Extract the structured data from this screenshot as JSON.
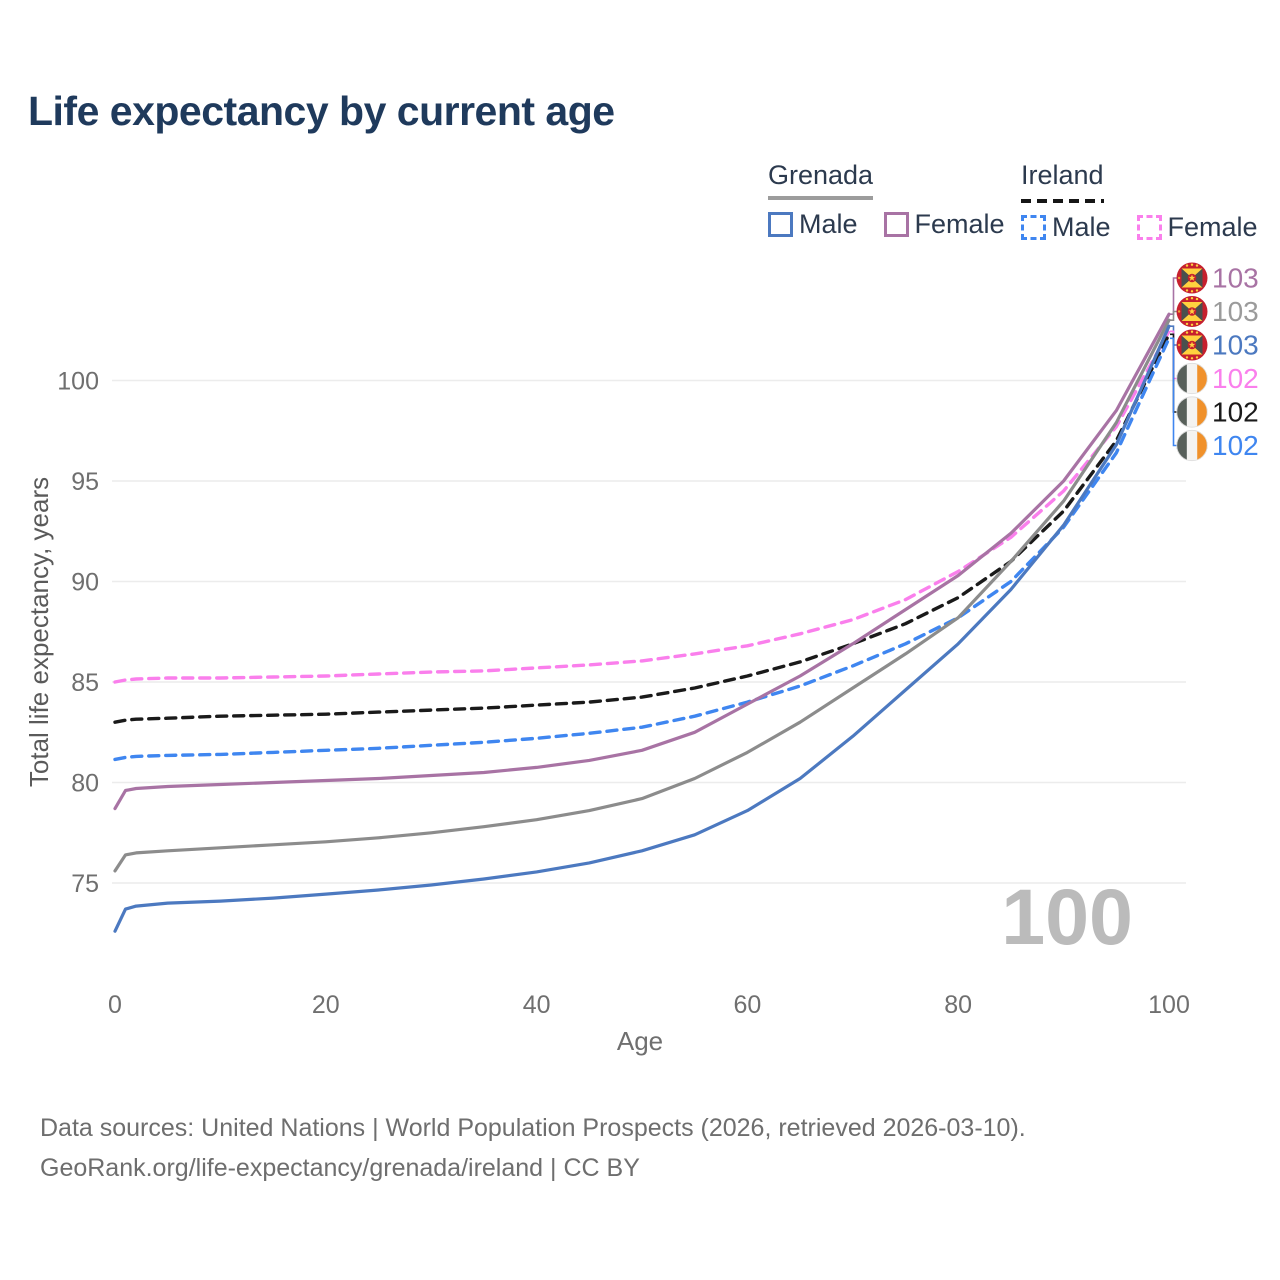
{
  "title": "Life expectancy by current age",
  "legend": {
    "groups": [
      {
        "label": "Grenada",
        "underline_style": "solid",
        "underline_color": "#9C9C9C",
        "items": [
          {
            "label": "Male",
            "color": "#4C79C0",
            "dashed": false
          },
          {
            "label": "Female",
            "color": "#A873A4",
            "dashed": false
          }
        ]
      },
      {
        "label": "Ireland",
        "underline_style": "dashed",
        "underline_color": "#161616",
        "items": [
          {
            "label": "Male",
            "color": "#3F86F0",
            "dashed": true
          },
          {
            "label": "Female",
            "color": "#FA7FEC",
            "dashed": true
          }
        ]
      }
    ]
  },
  "axes": {
    "xlabel": "Age",
    "ylabel": "Total life expectancy, years"
  },
  "watermark": "100",
  "chart_data": {
    "type": "line",
    "title": "Life expectancy by current age",
    "xlabel": "Age",
    "ylabel": "Total life expectancy, years",
    "xlim": [
      0,
      100
    ],
    "ylim": [
      72,
      104
    ],
    "xticks": [
      0,
      20,
      40,
      60,
      80,
      100
    ],
    "yticks": [
      75,
      80,
      85,
      90,
      95,
      100
    ],
    "grid": true,
    "legend_position": "top-right",
    "x": [
      0,
      1,
      2,
      5,
      10,
      15,
      20,
      25,
      30,
      35,
      40,
      45,
      50,
      55,
      60,
      65,
      70,
      75,
      80,
      85,
      90,
      95,
      100
    ],
    "series": [
      {
        "name": "ireland-female",
        "country": "Ireland",
        "sex": "Female",
        "color": "#FA7FEC",
        "dashed": true,
        "values": [
          85.0,
          85.1,
          85.15,
          85.2,
          85.2,
          85.25,
          85.3,
          85.4,
          85.5,
          85.55,
          85.7,
          85.85,
          86.05,
          86.4,
          86.8,
          87.4,
          88.1,
          89.1,
          90.5,
          92.2,
          94.5,
          97.7,
          102.45
        ]
      },
      {
        "name": "ireland-total",
        "country": "Ireland",
        "sex": "Both",
        "color": "#1A1A1A",
        "dashed": true,
        "values": [
          83.0,
          83.1,
          83.15,
          83.2,
          83.3,
          83.35,
          83.4,
          83.5,
          83.6,
          83.7,
          83.85,
          84.0,
          84.25,
          84.7,
          85.3,
          86.0,
          86.9,
          87.9,
          89.2,
          91.0,
          93.5,
          97.0,
          102.3
        ]
      },
      {
        "name": "ireland-male",
        "country": "Ireland",
        "sex": "Male",
        "color": "#3F86F0",
        "dashed": true,
        "values": [
          81.15,
          81.25,
          81.3,
          81.35,
          81.4,
          81.5,
          81.6,
          81.7,
          81.85,
          82.0,
          82.2,
          82.45,
          82.75,
          83.3,
          84.0,
          84.8,
          85.8,
          86.9,
          88.2,
          90.0,
          92.7,
          96.4,
          102.1
        ]
      },
      {
        "name": "grenada-female",
        "country": "Grenada",
        "sex": "Female",
        "color": "#A873A4",
        "dashed": false,
        "values": [
          78.7,
          79.6,
          79.7,
          79.8,
          79.9,
          80.0,
          80.1,
          80.2,
          80.35,
          80.5,
          80.75,
          81.1,
          81.6,
          82.5,
          83.9,
          85.3,
          86.9,
          88.6,
          90.3,
          92.4,
          95.0,
          98.5,
          103.3
        ]
      },
      {
        "name": "grenada-total",
        "country": "Grenada",
        "sex": "Both",
        "color": "#8C8C8C",
        "dashed": false,
        "values": [
          75.6,
          76.4,
          76.5,
          76.6,
          76.75,
          76.9,
          77.05,
          77.25,
          77.5,
          77.8,
          78.15,
          78.6,
          79.2,
          80.2,
          81.5,
          83.0,
          84.7,
          86.4,
          88.2,
          91.0,
          94.0,
          97.9,
          103.0
        ]
      },
      {
        "name": "grenada-male",
        "country": "Grenada",
        "sex": "Male",
        "color": "#4C79C0",
        "dashed": false,
        "values": [
          72.6,
          73.7,
          73.85,
          74.0,
          74.1,
          74.25,
          74.45,
          74.65,
          74.9,
          75.2,
          75.55,
          76.0,
          76.6,
          77.4,
          78.6,
          80.2,
          82.3,
          84.6,
          86.9,
          89.6,
          92.8,
          96.8,
          102.7
        ]
      }
    ]
  },
  "end_labels": [
    {
      "series": "grenada-female",
      "value": "103",
      "color": "#A873A4",
      "flag": "grenada-flag"
    },
    {
      "series": "grenada-total",
      "value": "103",
      "color": "#9B9B9B",
      "flag": "grenada-flag"
    },
    {
      "series": "grenada-male",
      "value": "103",
      "color": "#4C79C0",
      "flag": "grenada-flag"
    },
    {
      "series": "ireland-female",
      "value": "102",
      "color": "#FA7FEC",
      "flag": "ireland-flag"
    },
    {
      "series": "ireland-total",
      "value": "102",
      "color": "#1A1A1A",
      "flag": "ireland-flag"
    },
    {
      "series": "ireland-male",
      "value": "102",
      "color": "#3F86F0",
      "flag": "ireland-flag"
    }
  ],
  "footer": {
    "line1": "Data sources: United Nations | World Population Prospects (2026, retrieved 2026-03-10).",
    "line2": "GeoRank.org/life-expectancy/grenada/ireland | CC BY"
  }
}
